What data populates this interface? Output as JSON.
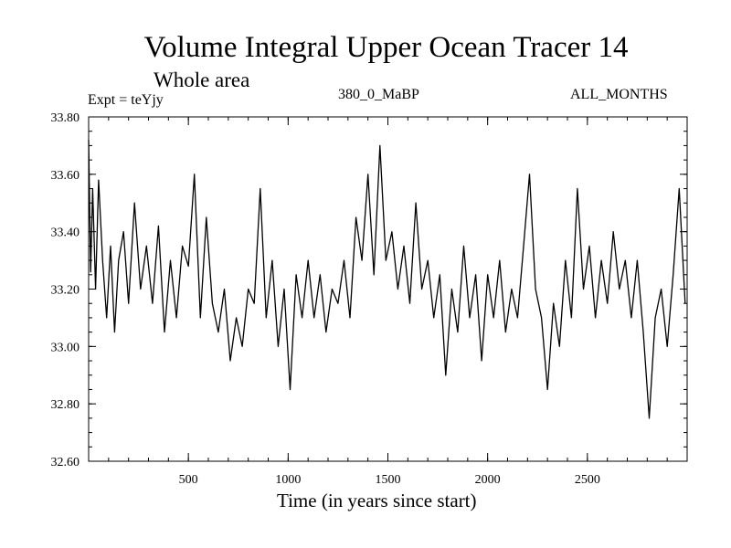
{
  "chart_data": {
    "type": "line",
    "title": "Volume Integral Upper Ocean Tracer 14",
    "subtitle": "Whole area",
    "annotations": {
      "left": "Expt = teYjy",
      "center": "380_0_MaBP",
      "right": "ALL_MONTHS"
    },
    "xlabel": "Time (in years since start)",
    "ylabel": "",
    "xlim": [
      0,
      3000
    ],
    "ylim": [
      32.6,
      33.8
    ],
    "x_ticks": [
      500,
      1000,
      1500,
      2000,
      2500
    ],
    "x_tick_labels": [
      "500",
      "1000",
      "1500",
      "2000",
      "2500"
    ],
    "y_ticks": [
      32.6,
      32.8,
      33.0,
      33.2,
      33.4,
      33.6,
      33.8
    ],
    "y_tick_labels": [
      "32.60",
      "32.80",
      "33.00",
      "33.20",
      "33.40",
      "33.60",
      "33.80"
    ],
    "series": [
      {
        "name": "tracer 14",
        "color": "#000000",
        "x": [
          0,
          10,
          20,
          35,
          50,
          70,
          90,
          110,
          130,
          150,
          175,
          200,
          230,
          260,
          290,
          320,
          350,
          380,
          410,
          440,
          470,
          500,
          530,
          560,
          590,
          620,
          650,
          680,
          710,
          740,
          770,
          800,
          830,
          860,
          890,
          920,
          950,
          980,
          1010,
          1040,
          1070,
          1100,
          1130,
          1160,
          1190,
          1220,
          1250,
          1280,
          1310,
          1340,
          1370,
          1400,
          1430,
          1460,
          1490,
          1520,
          1550,
          1580,
          1610,
          1640,
          1670,
          1700,
          1730,
          1760,
          1790,
          1820,
          1850,
          1880,
          1910,
          1940,
          1970,
          2000,
          2030,
          2060,
          2090,
          2120,
          2150,
          2180,
          2210,
          2240,
          2270,
          2300,
          2330,
          2360,
          2390,
          2420,
          2450,
          2480,
          2510,
          2540,
          2570,
          2600,
          2630,
          2660,
          2690,
          2720,
          2750,
          2780,
          2810,
          2840,
          2870,
          2900,
          2930,
          2960,
          2990
        ],
        "values": [
          33.72,
          33.26,
          33.55,
          33.2,
          33.58,
          33.3,
          33.1,
          33.35,
          33.05,
          33.3,
          33.4,
          33.15,
          33.5,
          33.2,
          33.35,
          33.15,
          33.42,
          33.05,
          33.3,
          33.1,
          33.35,
          33.28,
          33.6,
          33.1,
          33.45,
          33.15,
          33.05,
          33.2,
          32.95,
          33.1,
          33.0,
          33.2,
          33.15,
          33.55,
          33.1,
          33.3,
          33.0,
          33.2,
          32.85,
          33.25,
          33.1,
          33.3,
          33.1,
          33.25,
          33.05,
          33.2,
          33.15,
          33.3,
          33.1,
          33.45,
          33.3,
          33.6,
          33.25,
          33.7,
          33.3,
          33.4,
          33.2,
          33.35,
          33.15,
          33.5,
          33.2,
          33.3,
          33.1,
          33.25,
          32.9,
          33.2,
          33.05,
          33.35,
          33.1,
          33.25,
          32.95,
          33.25,
          33.1,
          33.3,
          33.05,
          33.2,
          33.1,
          33.35,
          33.6,
          33.2,
          33.1,
          32.85,
          33.15,
          33.0,
          33.3,
          33.1,
          33.55,
          33.2,
          33.35,
          33.1,
          33.3,
          33.15,
          33.4,
          33.2,
          33.3,
          33.1,
          33.3,
          33.05,
          32.75,
          33.1,
          33.2,
          33.0,
          33.25,
          33.55,
          33.15
        ]
      }
    ]
  }
}
